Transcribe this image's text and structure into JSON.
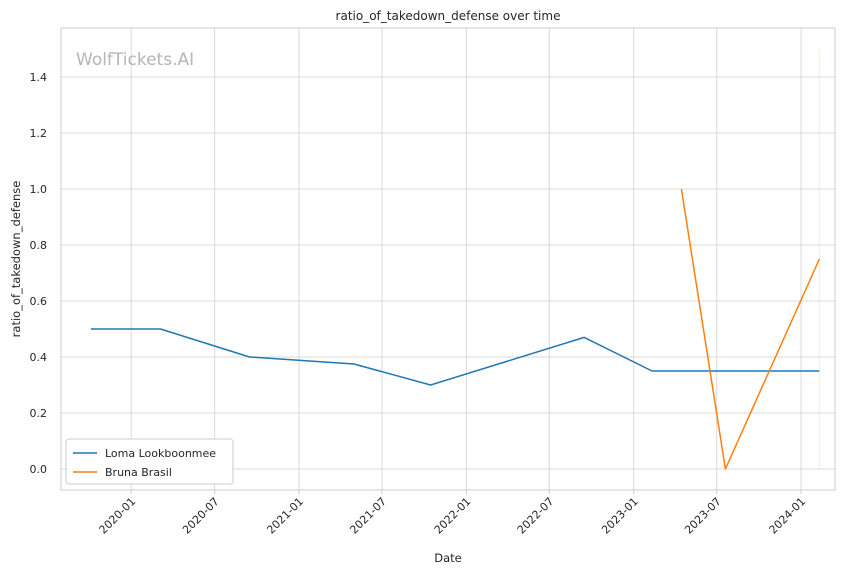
{
  "chart_data": {
    "type": "line",
    "title": "ratio_of_takedown_defense over time",
    "xlabel": "Date",
    "ylabel": "ratio_of_takedown_defense",
    "watermark": "WolfTickets.AI",
    "x_ticks": [
      "2020-01",
      "2020-07",
      "2021-01",
      "2021-07",
      "2022-01",
      "2022-07",
      "2023-01",
      "2023-07",
      "2024-01"
    ],
    "y_ticks": [
      "0.0",
      "0.2",
      "0.4",
      "0.6",
      "0.8",
      "1.0",
      "1.2",
      "1.4"
    ],
    "xlim": [
      "2019-08-01",
      "2024-03-15"
    ],
    "ylim": [
      -0.075,
      1.575
    ],
    "grid": true,
    "legend_position": "lower-left",
    "series": [
      {
        "name": "Loma Lookboonmee",
        "color": "#1f77b4",
        "points": [
          {
            "x": "2019-10-05",
            "y": 0.5
          },
          {
            "x": "2020-03-05",
            "y": 0.5
          },
          {
            "x": "2020-09-15",
            "y": 0.4
          },
          {
            "x": "2021-05-01",
            "y": 0.375
          },
          {
            "x": "2021-10-15",
            "y": 0.3
          },
          {
            "x": "2022-09-15",
            "y": 0.47
          },
          {
            "x": "2023-02-10",
            "y": 0.35
          },
          {
            "x": "2024-02-10",
            "y": 0.35
          }
        ]
      },
      {
        "name": "Bruna Brasil",
        "color": "#ff7f0e",
        "points": [
          {
            "x": "2023-04-15",
            "y": 1.0
          },
          {
            "x": "2023-07-20",
            "y": 0.0
          },
          {
            "x": "2024-02-10",
            "y": 0.75
          }
        ]
      }
    ],
    "annotation_line": {
      "x": "2024-02-10",
      "y_from": 0.0,
      "y_to": 1.5,
      "color": "#ff7f0e"
    }
  }
}
